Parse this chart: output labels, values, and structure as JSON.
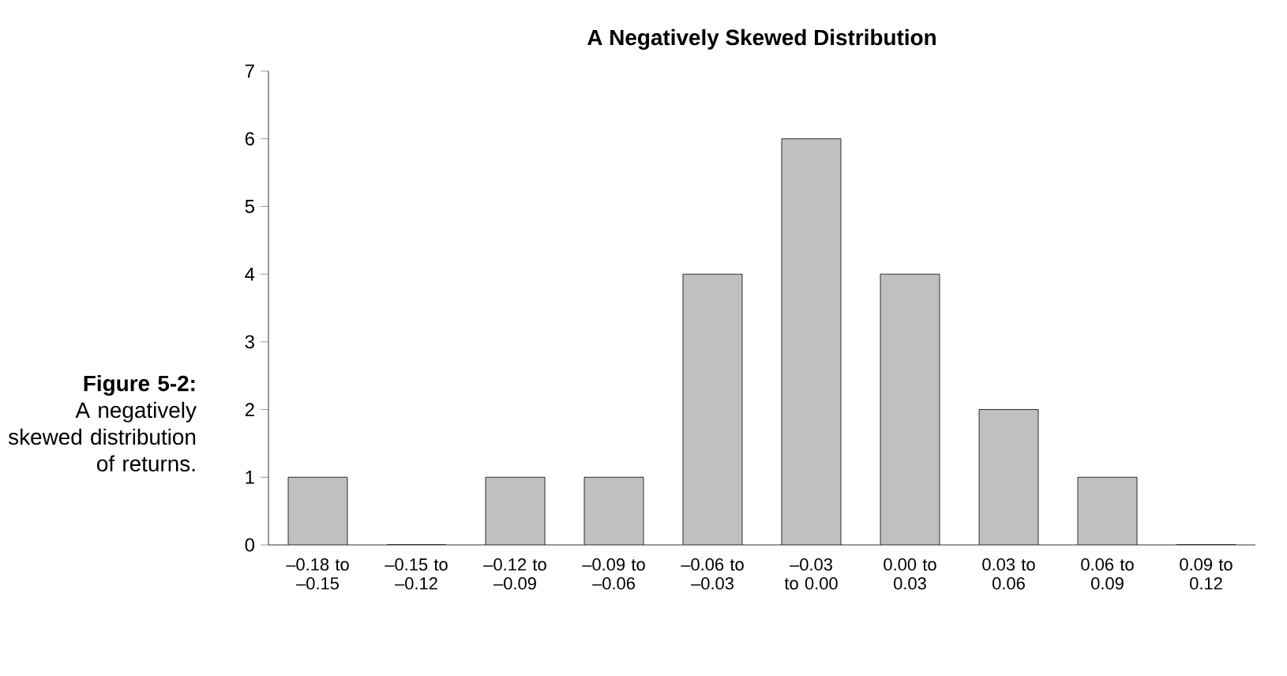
{
  "chart_data": {
    "type": "bar",
    "title": "A Negatively Skewed Distribution",
    "categories": [
      "–0.18 to –0.15",
      "–0.15 to –0.12",
      "–0.12 to –0.09",
      "–0.09 to –0.06",
      "–0.06 to –0.03",
      "–0.03 to 0.00",
      "0.00 to 0.03",
      "0.03 to 0.06",
      "0.06 to 0.09",
      "0.09 to 0.12"
    ],
    "values": [
      1,
      0,
      1,
      1,
      4,
      6,
      4,
      2,
      1,
      0
    ],
    "color": "#c0c0c0",
    "ylim": [
      0,
      7
    ],
    "yticks": [
      0,
      1,
      2,
      3,
      4,
      5,
      6,
      7
    ],
    "annotations": [
      "**Figure 5-2:** A negatively skewed distribution of returns."
    ]
  }
}
